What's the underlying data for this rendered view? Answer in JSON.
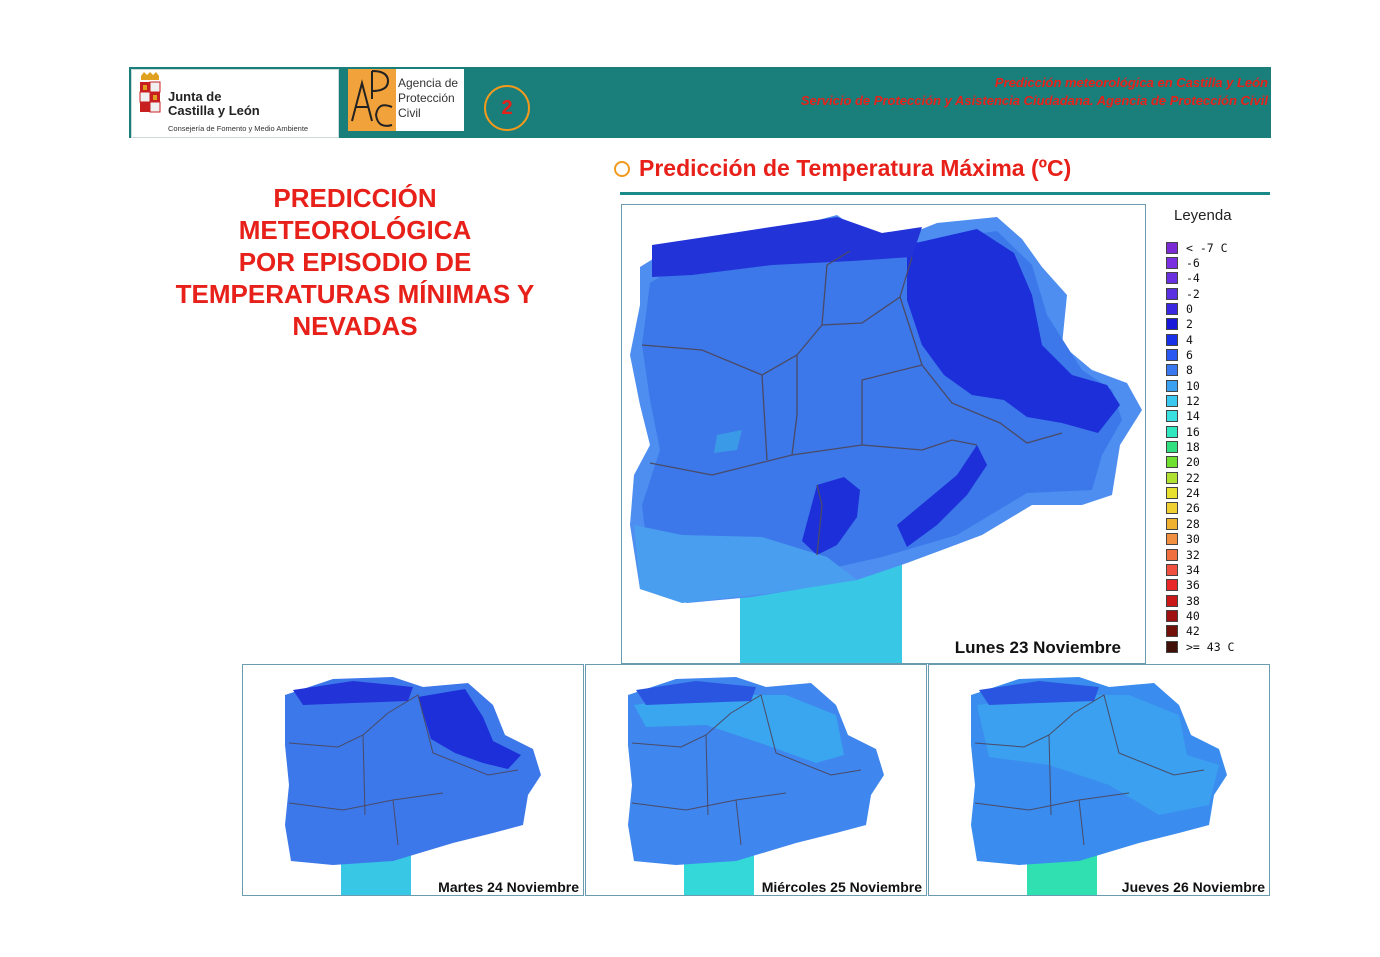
{
  "header": {
    "jcyl": {
      "name_line1": "Junta de",
      "name_line2": "Castilla y León",
      "subtitle": "Consejería de Fomento y Medio Ambiente"
    },
    "apc": {
      "initials": "APC",
      "line1": "Agencia de",
      "line2": "Protección",
      "line3": "Civil"
    },
    "page_number": "2",
    "line1": "Predicción meteorológica en Castilla y León",
    "line2": "Servicio de Protección y Asistencia Ciudadana. Agencia de Protección Civil",
    "band_color": "#1a7f7b",
    "accent_color": "#e8201a"
  },
  "main_heading": {
    "lines": [
      "PREDICCIÓN",
      "METEOROLÓGICA",
      "POR EPISODIO DE",
      "TEMPERATURAS MÍNIMAS Y",
      "NEVADAS"
    ]
  },
  "section_title": "Predicción de Temperatura Máxima (ºC)",
  "maps": {
    "main": {
      "label": "Lunes 23 Noviembre",
      "icon": "temperature-map"
    },
    "small": [
      {
        "label": "Martes 24 Noviembre",
        "icon": "temperature-map"
      },
      {
        "label": "Miércoles 25 Noviembre",
        "icon": "temperature-map"
      },
      {
        "label": "Jueves 26 Noviembre",
        "icon": "temperature-map"
      }
    ]
  },
  "legend": {
    "title": "Leyenda",
    "items": [
      {
        "label": "< -7 C",
        "color": "#7a2bd6"
      },
      {
        "label": "-6",
        "color": "#7a30e0"
      },
      {
        "label": "-4",
        "color": "#6a30e0"
      },
      {
        "label": "-2",
        "color": "#5a30e0"
      },
      {
        "label": "0",
        "color": "#3a28e0"
      },
      {
        "label": "2",
        "color": "#1818d8"
      },
      {
        "label": "4",
        "color": "#1830e8"
      },
      {
        "label": "6",
        "color": "#2a58f0"
      },
      {
        "label": "8",
        "color": "#3a78f0"
      },
      {
        "label": "10",
        "color": "#3aa0f0"
      },
      {
        "label": "12",
        "color": "#3ac8f0"
      },
      {
        "label": "14",
        "color": "#3ae0e0"
      },
      {
        "label": "16",
        "color": "#30e8c0"
      },
      {
        "label": "18",
        "color": "#30e080"
      },
      {
        "label": "20",
        "color": "#70e030"
      },
      {
        "label": "22",
        "color": "#b0e030"
      },
      {
        "label": "24",
        "color": "#e8e030"
      },
      {
        "label": "26",
        "color": "#f0d030"
      },
      {
        "label": "28",
        "color": "#f0b030"
      },
      {
        "label": "30",
        "color": "#f09040"
      },
      {
        "label": "32",
        "color": "#f07040"
      },
      {
        "label": "34",
        "color": "#f05040"
      },
      {
        "label": "36",
        "color": "#e82828"
      },
      {
        "label": "38",
        "color": "#c81818"
      },
      {
        "label": "40",
        "color": "#a01010"
      },
      {
        "label": "42",
        "color": "#701008"
      },
      {
        "label": ">= 43 C",
        "color": "#401008"
      }
    ]
  }
}
